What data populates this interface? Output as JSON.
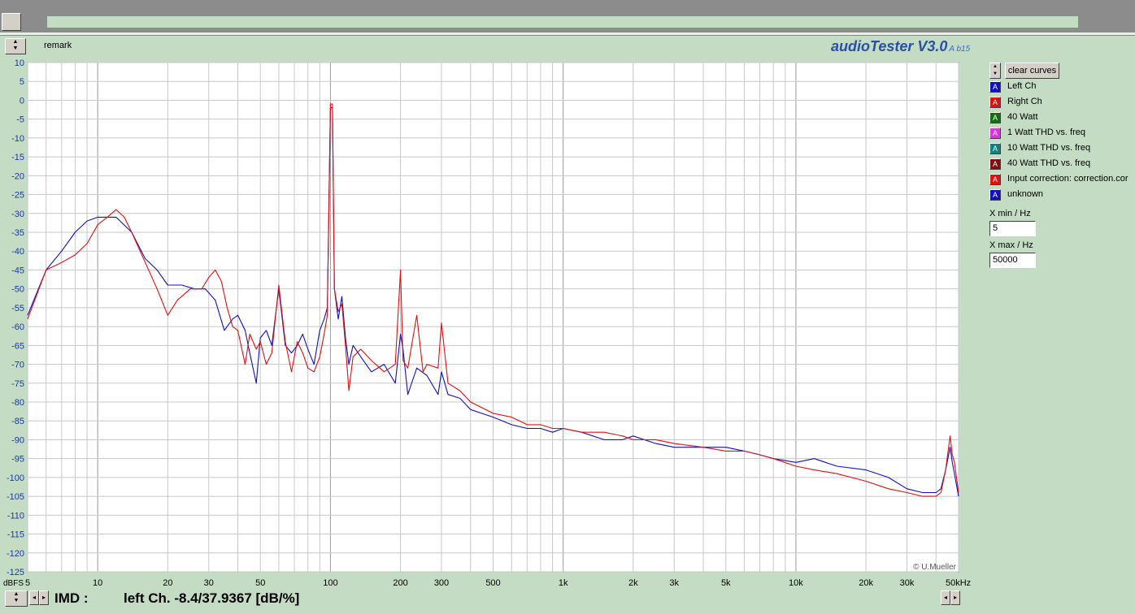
{
  "app": {
    "title": "audioTester V3.0",
    "version_suffix": "A b15",
    "remark_label": "remark",
    "copyright": "© U.Mueller"
  },
  "controls": {
    "clear_curves_label": "clear curves",
    "xmin_label": "X min / Hz",
    "xmin_value": "5",
    "xmax_label": "X max / Hz",
    "xmax_value": "50000"
  },
  "legend": [
    {
      "label": "Left Ch",
      "color": "#1010c0",
      "glyph": "A"
    },
    {
      "label": "Right Ch",
      "color": "#e01010",
      "glyph": "A"
    },
    {
      "label": "40 Watt",
      "color": "#107010",
      "glyph": "A"
    },
    {
      "label": "1 Watt THD vs. freq",
      "color": "#e030e0",
      "glyph": "A"
    },
    {
      "label": "10 Watt THD vs. freq",
      "color": "#108080",
      "glyph": "A"
    },
    {
      "label": "40 Watt THD vs. freq",
      "color": "#801010",
      "glyph": "A"
    },
    {
      "label": "Input correction: correction.cor",
      "color": "#e01010",
      "glyph": "A"
    },
    {
      "label": "unknown",
      "color": "#1010c0",
      "glyph": "A"
    }
  ],
  "status": {
    "measure_label": "IMD :",
    "measure_value": "left Ch. -8.4/37.9367 [dB/%]"
  },
  "chart_data": {
    "type": "line",
    "y_unit_label": "dBFS",
    "x_scale": "log",
    "xlim": [
      5,
      50000
    ],
    "ylim": [
      -125,
      10
    ],
    "y_ticks": [
      10,
      5,
      0,
      -5,
      -10,
      -15,
      -20,
      -25,
      -30,
      -35,
      -40,
      -45,
      -50,
      -55,
      -60,
      -65,
      -70,
      -75,
      -80,
      -85,
      -90,
      -95,
      -100,
      -105,
      -110,
      -115,
      -120,
      -125
    ],
    "x_tick_labels": [
      {
        "value": 5,
        "label": "5"
      },
      {
        "value": 10,
        "label": "10"
      },
      {
        "value": 20,
        "label": "20"
      },
      {
        "value": 30,
        "label": "30"
      },
      {
        "value": 50,
        "label": "50"
      },
      {
        "value": 100,
        "label": "100"
      },
      {
        "value": 200,
        "label": "200"
      },
      {
        "value": 300,
        "label": "300"
      },
      {
        "value": 500,
        "label": "500"
      },
      {
        "value": 1000,
        "label": "1k"
      },
      {
        "value": 2000,
        "label": "2k"
      },
      {
        "value": 3000,
        "label": "3k"
      },
      {
        "value": 5000,
        "label": "5k"
      },
      {
        "value": 10000,
        "label": "10k"
      },
      {
        "value": 20000,
        "label": "20k"
      },
      {
        "value": 30000,
        "label": "30k"
      },
      {
        "value": 50000,
        "label": "50kHz"
      }
    ],
    "grid": true,
    "series": [
      {
        "color": "#1010c0",
        "x": [
          5,
          6,
          7,
          8,
          9,
          10,
          12,
          14,
          16,
          18,
          20,
          23,
          26,
          29,
          32,
          35,
          38,
          40,
          43,
          45,
          48,
          50,
          53,
          56,
          60,
          64,
          68,
          72,
          76,
          80,
          85,
          90,
          94,
          97,
          100,
          102,
          104,
          108,
          112,
          116,
          120,
          125,
          135,
          150,
          170,
          190,
          200,
          205,
          215,
          235,
          260,
          290,
          300,
          320,
          360,
          400,
          500,
          600,
          700,
          800,
          900,
          1000,
          1200,
          1500,
          1800,
          2000,
          2500,
          3000,
          4000,
          5000,
          6000,
          7000,
          8000,
          10000,
          12000,
          15000,
          20000,
          25000,
          30000,
          35000,
          40000,
          42000,
          44000,
          46000,
          47000,
          48000,
          50000
        ],
        "y": [
          -57,
          -45,
          -40,
          -35,
          -32,
          -31,
          -31,
          -35,
          -42,
          -45,
          -49,
          -49,
          -50,
          -50,
          -53,
          -61,
          -58,
          -57,
          -61,
          -67,
          -75,
          -63,
          -61,
          -65,
          -50,
          -65,
          -67,
          -65,
          -62,
          -66,
          -70,
          -61,
          -58,
          -55,
          -2,
          -2,
          -50,
          -58,
          -52,
          -63,
          -70,
          -65,
          -68,
          -72,
          -70,
          -75,
          -62,
          -66,
          -78,
          -71,
          -73,
          -78,
          -72,
          -78,
          -79,
          -82,
          -84,
          -86,
          -87,
          -87,
          -88,
          -87,
          -88,
          -90,
          -90,
          -89,
          -91,
          -92,
          -92,
          -92,
          -93,
          -94,
          -95,
          -96,
          -95,
          -97,
          -98,
          -100,
          -103,
          -104,
          -104,
          -103,
          -98,
          -92,
          -96,
          -99,
          -105
        ]
      },
      {
        "color": "#e01010",
        "x": [
          5,
          6,
          7,
          8,
          9,
          10,
          11,
          12,
          13,
          14,
          16,
          18,
          20,
          22,
          25,
          28,
          30,
          32,
          34,
          36,
          38,
          40,
          43,
          45,
          48,
          50,
          53,
          56,
          60,
          64,
          68,
          72,
          76,
          80,
          85,
          90,
          94,
          97,
          100,
          102,
          104,
          108,
          112,
          116,
          120,
          125,
          135,
          150,
          170,
          190,
          200,
          205,
          215,
          235,
          250,
          260,
          290,
          300,
          320,
          360,
          400,
          500,
          600,
          700,
          800,
          900,
          1000,
          1200,
          1500,
          1800,
          2000,
          2500,
          3000,
          4000,
          5000,
          6000,
          7000,
          8000,
          10000,
          12000,
          15000,
          20000,
          25000,
          30000,
          35000,
          40000,
          42000,
          44000,
          46000,
          47000,
          48000,
          50000
        ],
        "y": [
          -58,
          -45,
          -43,
          -41,
          -38,
          -33,
          -31,
          -29,
          -31,
          -35,
          -43,
          -50,
          -57,
          -53,
          -50,
          -50,
          -47,
          -45,
          -48,
          -55,
          -60,
          -61,
          -70,
          -62,
          -66,
          -64,
          -70,
          -67,
          -49,
          -64,
          -72,
          -64,
          -67,
          -71,
          -72,
          -68,
          -62,
          -57,
          -1,
          -1,
          -50,
          -56,
          -54,
          -65,
          -77,
          -68,
          -66,
          -69,
          -72,
          -70,
          -45,
          -69,
          -71,
          -57,
          -72,
          -70,
          -71,
          -59,
          -75,
          -77,
          -80,
          -83,
          -84,
          -86,
          -86,
          -87,
          -87,
          -88,
          -88,
          -89,
          -90,
          -90,
          -91,
          -92,
          -93,
          -93,
          -94,
          -95,
          -97,
          -98,
          -99,
          -101,
          -103,
          -104,
          -105,
          -105,
          -104,
          -98,
          -89,
          -94,
          -96,
          -104
        ]
      }
    ]
  }
}
